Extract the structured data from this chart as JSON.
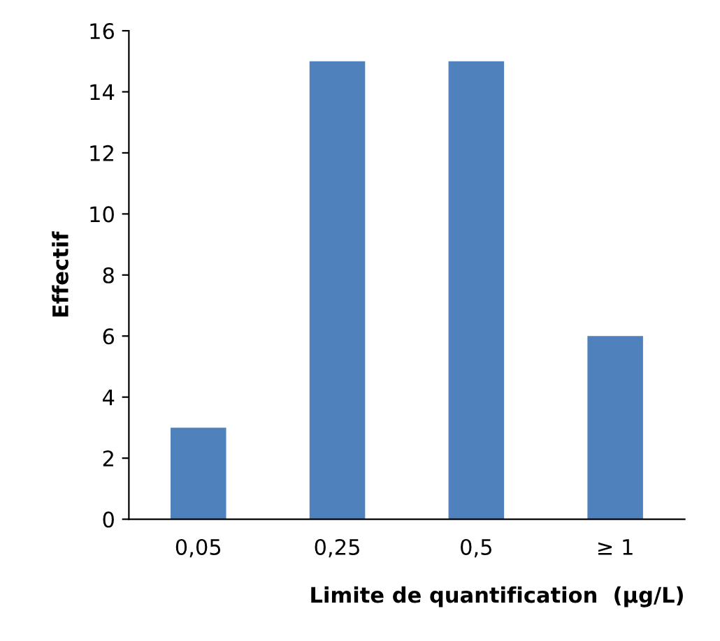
{
  "chart_data": {
    "type": "bar",
    "xlabel": "Limite de quantification  (µg/L)",
    "ylabel": "Effectif",
    "categories": [
      "0,05",
      "0,25",
      "0,5",
      "≥ 1"
    ],
    "values": [
      3,
      15,
      15,
      6
    ],
    "color": "#4f81bd",
    "ylim": [
      0,
      16
    ],
    "yticks": [
      0,
      2,
      4,
      6,
      8,
      10,
      12,
      14,
      16
    ],
    "grid": false,
    "legend": false
  }
}
